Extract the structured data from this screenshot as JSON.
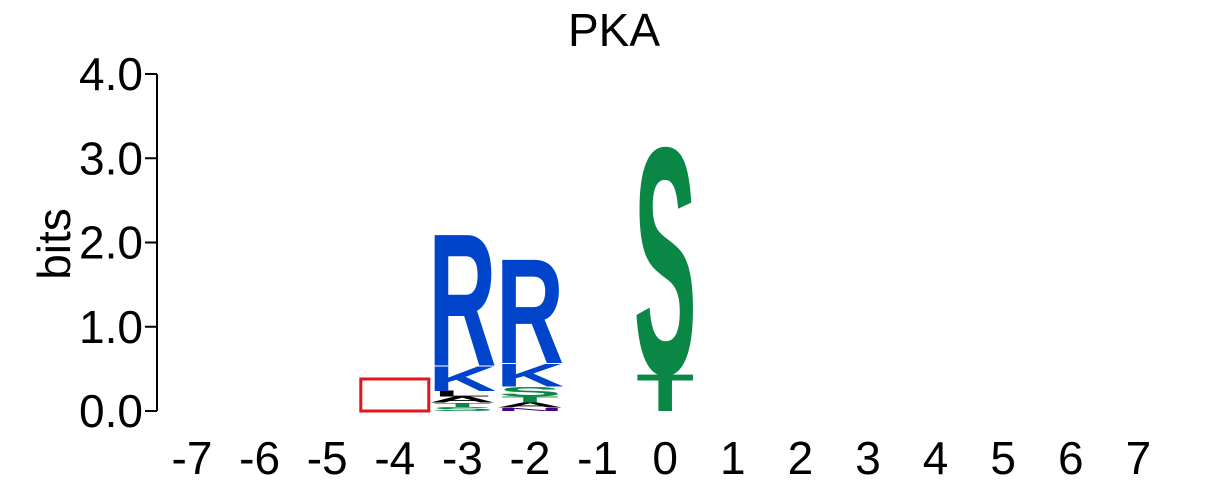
{
  "chart_data": {
    "type": "sequence-logo",
    "title": "PKA",
    "ylabel": "bits",
    "xlabel": "",
    "ylim": [
      0,
      4.0
    ],
    "yticks": [
      "0.0",
      "1.0",
      "2.0",
      "3.0",
      "4.0"
    ],
    "positions": [
      "-7",
      "-6",
      "-5",
      "-4",
      "-3",
      "-2",
      "-1",
      "0",
      "1",
      "2",
      "3",
      "4",
      "5",
      "6",
      "7"
    ],
    "highlight_position": "-4",
    "highlight_height": 0.38,
    "stacks": [
      {
        "position": "-3",
        "letters": [
          {
            "char": "S",
            "bits": 0.05,
            "color": "#0a8744"
          },
          {
            "char": "T",
            "bits": 0.05,
            "color": "#0a8744"
          },
          {
            "char": "A",
            "bits": 0.07,
            "color": "#000000"
          },
          {
            "char": "L",
            "bits": 0.07,
            "color": "#000000"
          },
          {
            "char": "K",
            "bits": 0.3,
            "color": "#0044cc"
          },
          {
            "char": "R",
            "bits": 1.62,
            "color": "#0044cc"
          }
        ]
      },
      {
        "position": "-2",
        "letters": [
          {
            "char": "N",
            "bits": 0.04,
            "color": "#4b0082"
          },
          {
            "char": "A",
            "bits": 0.06,
            "color": "#000000"
          },
          {
            "char": "T",
            "bits": 0.07,
            "color": "#0a8744"
          },
          {
            "char": "S",
            "bits": 0.12,
            "color": "#0a8744"
          },
          {
            "char": "K",
            "bits": 0.28,
            "color": "#0044cc"
          },
          {
            "char": "R",
            "bits": 1.28,
            "color": "#0044cc"
          }
        ]
      },
      {
        "position": "0",
        "letters": [
          {
            "char": "T",
            "bits": 0.45,
            "color": "#0a8744"
          },
          {
            "char": "S",
            "bits": 2.77,
            "color": "#0a8744"
          }
        ]
      }
    ]
  },
  "colors": {
    "basic": "#0044cc",
    "polar": "#0a8744",
    "hydrophobic": "#000000",
    "amide": "#4b0082",
    "highlight": "#e0161b"
  }
}
